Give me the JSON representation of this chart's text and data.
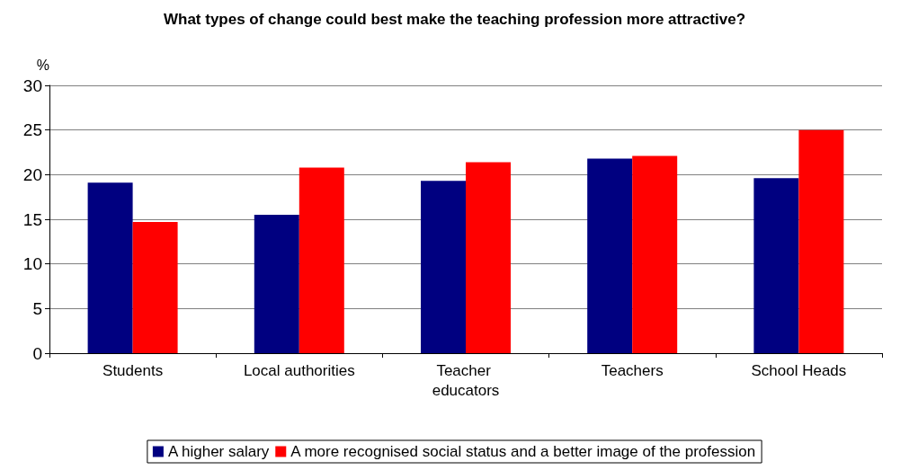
{
  "chart_data": {
    "type": "bar",
    "title": "What types of change could best make the teaching profession more attractive?",
    "ylabel": "%",
    "categories": [
      "Students",
      "Local authorities",
      "Teacher educators",
      "Teachers",
      "School Heads"
    ],
    "series": [
      {
        "name": "A higher salary",
        "color": "#000080",
        "values": [
          19.1,
          15.5,
          19.3,
          21.8,
          19.6
        ]
      },
      {
        "name": "A more recognised social status and a better image of the profession",
        "color": "#ff0000",
        "values": [
          14.7,
          20.8,
          21.4,
          22.1,
          25.0
        ]
      }
    ],
    "ylim": [
      0,
      30
    ],
    "yticks": [
      0,
      5,
      10,
      15,
      20,
      25,
      30
    ],
    "grid": "y",
    "legend": "bottom"
  }
}
